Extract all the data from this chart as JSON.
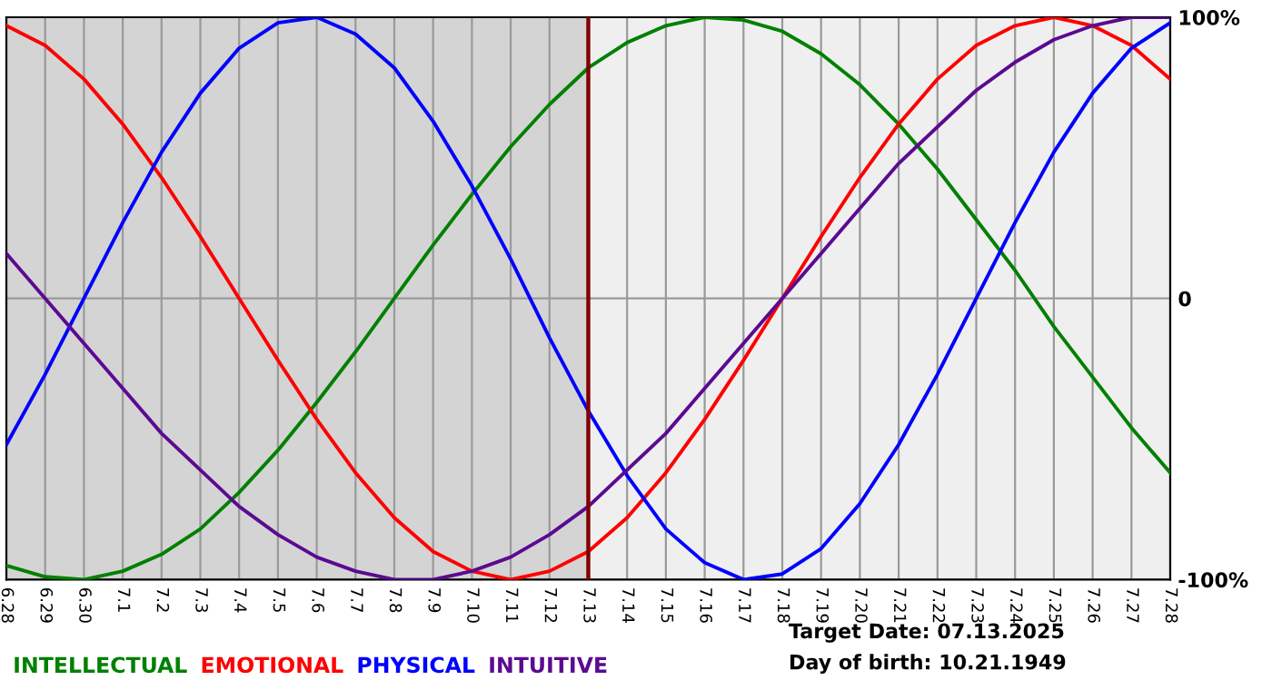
{
  "chart_data": {
    "type": "line",
    "categories": [
      "6.28",
      "6.29",
      "6.30",
      "7.1",
      "7.2",
      "7.3",
      "7.4",
      "7.5",
      "7.6",
      "7.7",
      "7.8",
      "7.9",
      "7.10",
      "7.11",
      "7.12",
      "7.13",
      "7.14",
      "7.15",
      "7.16",
      "7.17",
      "7.18",
      "7.19",
      "7.20",
      "7.21",
      "7.22",
      "7.23",
      "7.24",
      "7.25",
      "7.26",
      "7.27",
      "7.28"
    ],
    "series": [
      {
        "name": "INTELLECTUAL",
        "color": "#008000",
        "values": [
          -95,
          -99,
          -100,
          -97,
          -91,
          -82,
          -69,
          -54,
          -37,
          -19,
          0,
          19,
          37,
          54,
          69,
          82,
          91,
          97,
          100,
          99,
          95,
          87,
          76,
          62,
          46,
          28,
          10,
          -10,
          -28,
          -46,
          -62
        ]
      },
      {
        "name": "EMOTIONAL",
        "color": "#ff0000",
        "values": [
          97,
          90,
          78,
          62,
          43,
          22,
          0,
          -22,
          -43,
          -62,
          -78,
          -90,
          -97,
          -100,
          -97,
          -90,
          -78,
          -62,
          -43,
          -22,
          0,
          22,
          43,
          62,
          78,
          90,
          97,
          100,
          97,
          90,
          78
        ]
      },
      {
        "name": "PHYSICAL",
        "color": "#0000ff",
        "values": [
          -52,
          -27,
          0,
          27,
          52,
          73,
          89,
          98,
          100,
          94,
          82,
          63,
          40,
          14,
          -14,
          -40,
          -63,
          -82,
          -94,
          -100,
          -98,
          -89,
          -73,
          -52,
          -27,
          0,
          27,
          52,
          73,
          89,
          98
        ]
      },
      {
        "name": "INTUITIVE",
        "color": "#5b0a91",
        "values": [
          16,
          0,
          -16,
          -32,
          -48,
          -61,
          -74,
          -84,
          -92,
          -97,
          -100,
          -100,
          -97,
          -92,
          -84,
          -74,
          -61,
          -48,
          -32,
          -16,
          0,
          16,
          32,
          48,
          61,
          74,
          84,
          92,
          97,
          100,
          100
        ]
      }
    ],
    "ylim": [
      -100,
      100
    ],
    "yticks": [
      {
        "value": 100,
        "label": "100%"
      },
      0,
      {
        "value": -100,
        "label": "-100%"
      }
    ],
    "ref_lines": [
      {
        "axis": "x",
        "value": "7.13",
        "label": null,
        "color": "#800000"
      }
    ],
    "bands": [
      {
        "axis": "x",
        "from": "6.28",
        "to": "7.13",
        "label": null,
        "color": "#d4d4d4"
      }
    ],
    "annotations": [
      "Target Date: 07.13.2025",
      "Day of birth: 10.21.1949"
    ],
    "grid": true,
    "legend": "bottom left",
    "marker": "none",
    "line_style": "solid"
  }
}
